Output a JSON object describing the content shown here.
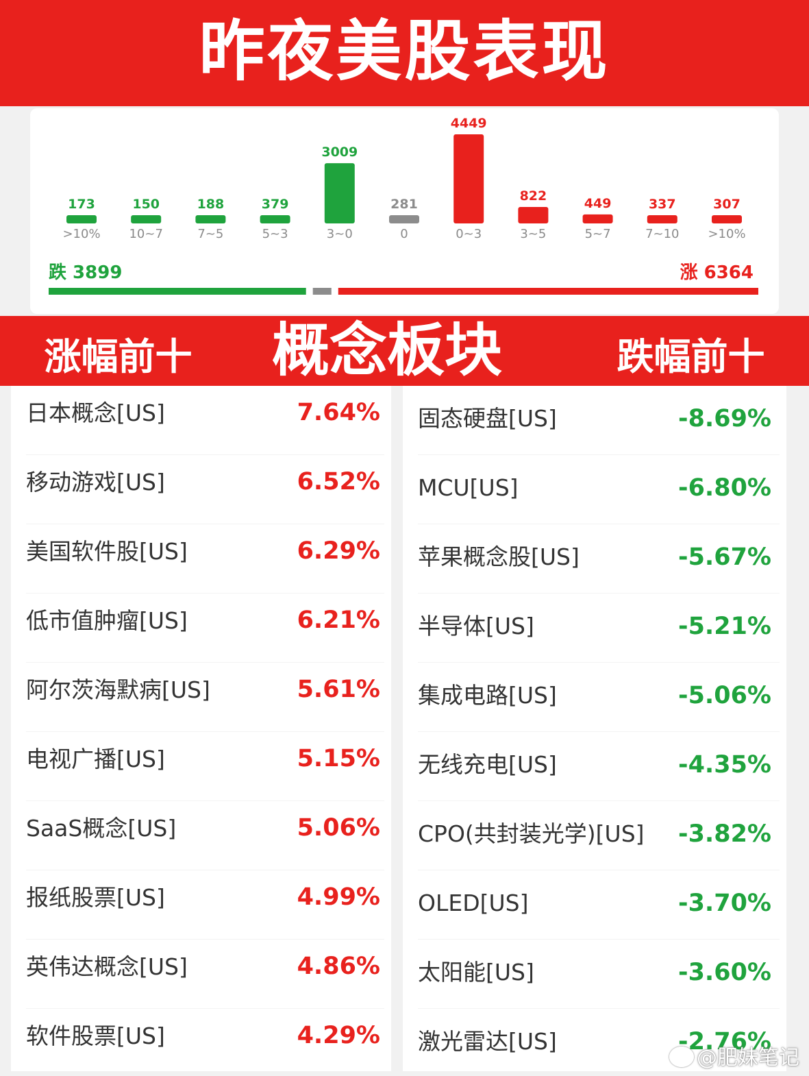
{
  "header": {
    "title": "昨夜美股表现"
  },
  "summary": {
    "down_label": "跌 3899",
    "up_label": "涨 6364",
    "down_count": 3899,
    "flat_count": 281,
    "up_count": 6364
  },
  "chart_data": {
    "type": "bar",
    "categories": [
      ">10%",
      "10~7",
      "7~5",
      "5~3",
      "3~0",
      "0",
      "0~3",
      "3~5",
      "5~7",
      "7~10",
      ">10%"
    ],
    "values": [
      173,
      150,
      188,
      379,
      3009,
      281,
      4449,
      822,
      449,
      337,
      307
    ],
    "value_labels": [
      "173",
      "150",
      "188",
      "379",
      "3009",
      "281",
      "4449",
      "822",
      "449",
      "337",
      "307"
    ],
    "bar_colors": [
      "#1fa33d",
      "#1fa33d",
      "#1fa33d",
      "#1fa33d",
      "#1fa33d",
      "#8c8c8c",
      "#e8211d",
      "#e8211d",
      "#e8211d",
      "#e8211d",
      "#e8211d"
    ],
    "grid": false
  },
  "section": {
    "title": "概念板块",
    "left_label": "涨幅前十",
    "right_label": "跌幅前十"
  },
  "top_gainers": [
    {
      "name": "日本概念[US]",
      "pct": "7.64%"
    },
    {
      "name": "移动游戏[US]",
      "pct": "6.52%"
    },
    {
      "name": "美国软件股[US]",
      "pct": "6.29%"
    },
    {
      "name": "低市值肿瘤[US]",
      "pct": "6.21%"
    },
    {
      "name": "阿尔茨海默病[US]",
      "pct": "5.61%"
    },
    {
      "name": "电视广播[US]",
      "pct": "5.15%"
    },
    {
      "name": "SaaS概念[US]",
      "pct": "5.06%"
    },
    {
      "name": "报纸股票[US]",
      "pct": "4.99%"
    },
    {
      "name": "英伟达概念[US]",
      "pct": "4.86%"
    },
    {
      "name": "软件股票[US]",
      "pct": "4.29%"
    }
  ],
  "top_losers": [
    {
      "name": "固态硬盘[US]",
      "pct": "-8.69%"
    },
    {
      "name": "MCU[US]",
      "pct": "-6.80%"
    },
    {
      "name": "苹果概念股[US]",
      "pct": "-5.67%"
    },
    {
      "name": "半导体[US]",
      "pct": "-5.21%"
    },
    {
      "name": "集成电路[US]",
      "pct": "-5.06%"
    },
    {
      "name": "无线充电[US]",
      "pct": "-4.35%"
    },
    {
      "name": "CPO(共封装光学)[US]",
      "pct": "-3.82%"
    },
    {
      "name": "OLED[US]",
      "pct": "-3.70%"
    },
    {
      "name": "太阳能[US]",
      "pct": "-3.60%"
    },
    {
      "name": "激光雷达[US]",
      "pct": "-2.76%"
    }
  ],
  "colors": {
    "up": "#e8211d",
    "down": "#1fa33d",
    "flat": "#8c8c8c",
    "banner": "#e8211d"
  },
  "watermark": {
    "text": "@肥妹笔记",
    "icon": "weibo-icon"
  }
}
